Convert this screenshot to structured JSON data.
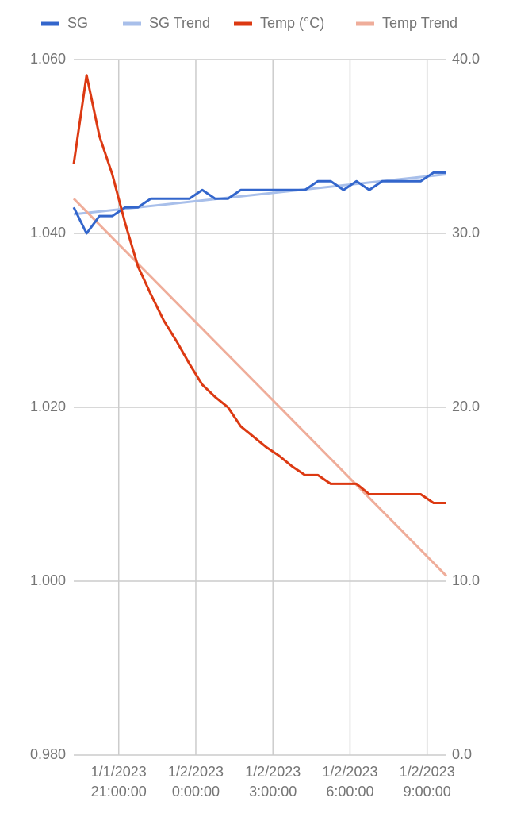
{
  "chart_data": {
    "type": "line",
    "x": [
      "2023-01-01T19:15:00",
      "2023-01-01T19:45:00",
      "2023-01-01T20:15:00",
      "2023-01-01T20:45:00",
      "2023-01-01T21:15:00",
      "2023-01-01T21:45:00",
      "2023-01-01T22:15:00",
      "2023-01-01T22:45:00",
      "2023-01-01T23:15:00",
      "2023-01-01T23:45:00",
      "2023-01-02T00:15:00",
      "2023-01-02T00:45:00",
      "2023-01-02T01:15:00",
      "2023-01-02T01:45:00",
      "2023-01-02T02:15:00",
      "2023-01-02T02:45:00",
      "2023-01-02T03:15:00",
      "2023-01-02T03:45:00",
      "2023-01-02T04:15:00",
      "2023-01-02T04:45:00",
      "2023-01-02T05:15:00",
      "2023-01-02T05:45:00",
      "2023-01-02T06:15:00",
      "2023-01-02T06:45:00",
      "2023-01-02T07:15:00",
      "2023-01-02T07:45:00",
      "2023-01-02T08:15:00",
      "2023-01-02T08:45:00",
      "2023-01-02T09:15:00",
      "2023-01-02T09:45:00"
    ],
    "series": [
      {
        "name": "SG",
        "color": "#3366cc",
        "values": [
          1.043,
          1.04,
          1.042,
          1.042,
          1.043,
          1.043,
          1.044,
          1.044,
          1.044,
          1.044,
          1.045,
          1.044,
          1.044,
          1.045,
          1.045,
          1.045,
          1.045,
          1.045,
          1.045,
          1.046,
          1.046,
          1.045,
          1.046,
          1.045,
          1.046,
          1.046,
          1.046,
          1.046,
          1.047,
          1.047
        ]
      },
      {
        "name": "SG Trend",
        "color": "#a8bfea",
        "x": [
          "2023-01-01T19:15:00",
          "2023-01-02T09:45:00"
        ],
        "values": [
          1.0422,
          1.0468
        ]
      },
      {
        "name": "Temp (°C)",
        "color": "#dc3912",
        "axis": "y2",
        "values": [
          34.0,
          39.1,
          35.6,
          33.4,
          30.6,
          28.1,
          26.5,
          25.0,
          23.8,
          22.5,
          21.3,
          20.6,
          20.0,
          18.9,
          18.3,
          17.7,
          17.2,
          16.6,
          16.1,
          16.1,
          15.6,
          15.6,
          15.6,
          15.0,
          15.0,
          15.0,
          15.0,
          15.0,
          14.5,
          14.5
        ]
      },
      {
        "name": "Temp Trend",
        "color": "#efad9a",
        "axis": "y2",
        "x": [
          "2023-01-01T19:15:00",
          "2023-01-02T09:45:00"
        ],
        "values": [
          32.0,
          10.3
        ]
      }
    ],
    "xlim": [
      "2023-01-01T19:15:00",
      "2023-01-02T09:45:00"
    ],
    "xticks": [
      {
        "value": "2023-01-01T21:00:00",
        "label": "1/1/2023 21:00:00"
      },
      {
        "value": "2023-01-02T00:00:00",
        "label": "1/2/2023 0:00:00"
      },
      {
        "value": "2023-01-02T03:00:00",
        "label": "1/2/2023 3:00:00"
      },
      {
        "value": "2023-01-02T06:00:00",
        "label": "1/2/2023 6:00:00"
      },
      {
        "value": "2023-01-02T09:00:00",
        "label": "1/2/2023 9:00:00"
      }
    ],
    "ylim": [
      0.98,
      1.06
    ],
    "yticks": [
      {
        "value": 0.98,
        "label": "0.980"
      },
      {
        "value": 1.0,
        "label": "1.000"
      },
      {
        "value": 1.02,
        "label": "1.020"
      },
      {
        "value": 1.04,
        "label": "1.040"
      },
      {
        "value": 1.06,
        "label": "1.060"
      }
    ],
    "y2lim": [
      0,
      40
    ],
    "y2ticks": [
      {
        "value": 0,
        "label": "0.0"
      },
      {
        "value": 10,
        "label": "10.0"
      },
      {
        "value": 20,
        "label": "20.0"
      },
      {
        "value": 30,
        "label": "30.0"
      },
      {
        "value": 40,
        "label": "40.0"
      }
    ],
    "grid": true,
    "legend": "top"
  }
}
